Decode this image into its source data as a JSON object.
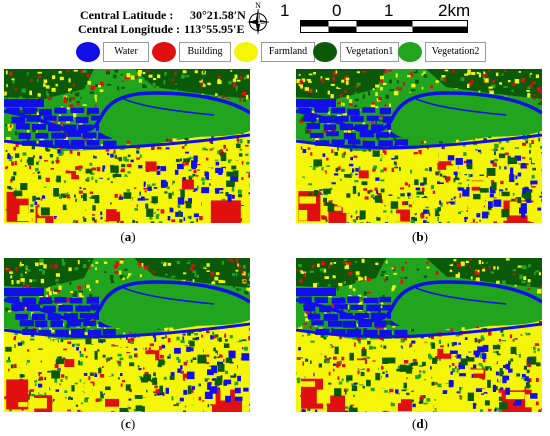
{
  "header": {
    "latitude_label": "Central Latitude :",
    "latitude_value": "30°21.58′N",
    "longitude_label": "Central Longitude :",
    "longitude_value": "113°55.95′E",
    "north_label": "N",
    "scale_labels": [
      "1",
      "0",
      "1",
      "2km"
    ]
  },
  "legend": [
    {
      "label": "Water",
      "color": "#1010e6"
    },
    {
      "label": "Building",
      "color": "#e01010"
    },
    {
      "label": "Farmland",
      "color": "#f5f50a"
    },
    {
      "label": "Vegetation1",
      "color": "#0a5a0a"
    },
    {
      "label": "Vegetation2",
      "color": "#22a51e"
    }
  ],
  "panels": [
    {
      "letter": "a"
    },
    {
      "letter": "b"
    },
    {
      "letter": "c"
    },
    {
      "letter": "d"
    }
  ]
}
